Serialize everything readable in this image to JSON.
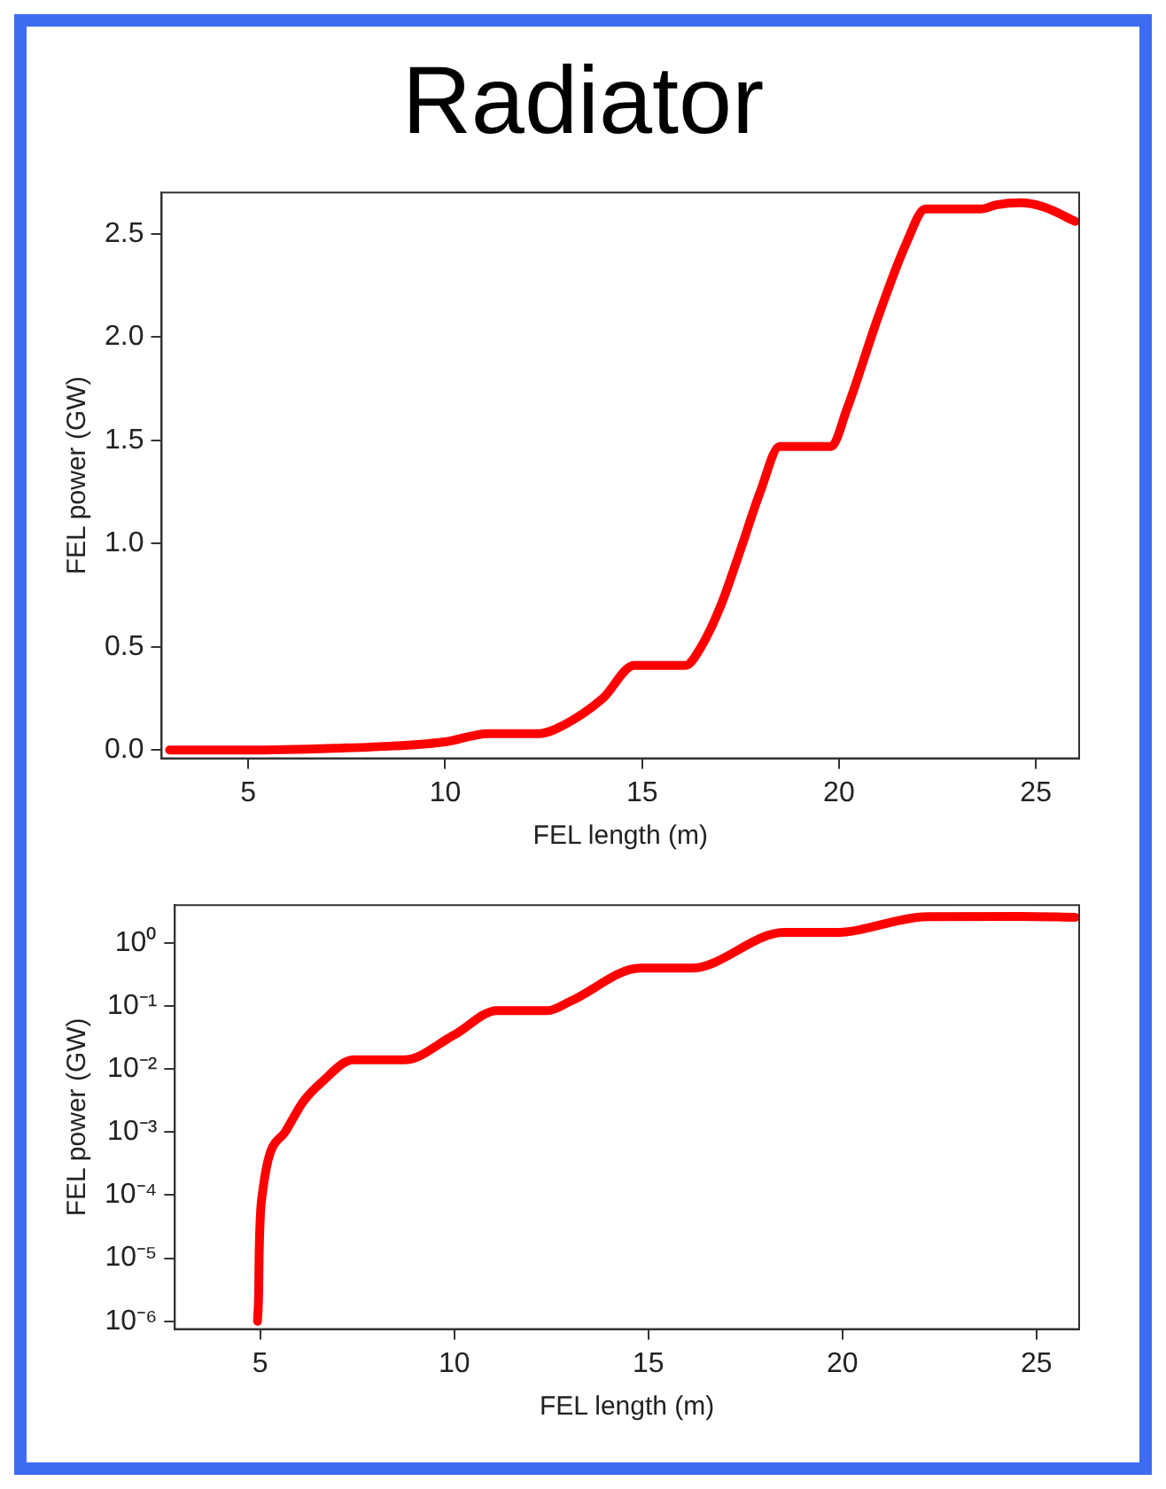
{
  "chart_data": [
    {
      "type": "line",
      "title": "Radiator",
      "xlabel": "FEL length (m)",
      "ylabel": "FEL power (GW)",
      "xlim": [
        2.8,
        26.1
      ],
      "ylim": [
        -0.04,
        2.7
      ],
      "xticks": [
        5,
        10,
        15,
        20,
        25
      ],
      "yticks": [
        {
          "value": 0,
          "label": "0.0"
        },
        {
          "value": 0.5,
          "label": "0.5"
        },
        {
          "value": 1,
          "label": "1.0"
        },
        {
          "value": 1.5,
          "label": "1.5"
        },
        {
          "value": 2,
          "label": "2.0"
        },
        {
          "value": 2.5,
          "label": "2.5"
        }
      ],
      "grid": false,
      "legend": false,
      "marker": "none",
      "line_style": "solid",
      "series": [
        {
          "color": "#ff0000",
          "x": [
            3,
            5,
            7.4,
            8.7,
            10,
            11.1,
            12.4,
            13,
            14,
            14.8,
            16.1,
            16.5,
            17,
            17.5,
            18,
            18.5,
            19.8,
            20.2,
            21,
            21.7,
            22.2,
            23.6,
            24,
            24.6,
            25.2,
            26
          ],
          "values": [
            0,
            0,
            0.01,
            0.02,
            0.04,
            0.08,
            0.08,
            0.12,
            0.25,
            0.41,
            0.41,
            0.5,
            0.7,
            0.97,
            1.25,
            1.47,
            1.47,
            1.65,
            2.1,
            2.45,
            2.62,
            2.62,
            2.64,
            2.65,
            2.63,
            2.56
          ]
        }
      ]
    },
    {
      "type": "line",
      "xlabel": "FEL length (m)",
      "ylabel": "FEL power (GW)",
      "log": "y",
      "xlim": [
        2.8,
        26.1
      ],
      "ylim": [
        7.5e-07,
        4
      ],
      "xticks": [
        5,
        10,
        15,
        20,
        25
      ],
      "yticks": [
        {
          "value": 1e-06,
          "label": "10⁻⁶"
        },
        {
          "value": 1e-05,
          "label": "10⁻⁵"
        },
        {
          "value": 0.0001,
          "label": "10⁻⁴"
        },
        {
          "value": 0.001,
          "label": "10⁻³"
        },
        {
          "value": 0.01,
          "label": "10⁻²"
        },
        {
          "value": 0.1,
          "label": "10⁻¹"
        },
        {
          "value": 1,
          "label": "10⁰"
        }
      ],
      "grid": false,
      "legend": false,
      "marker": "none",
      "line_style": "solid",
      "series": [
        {
          "color": "#ff0000",
          "x": [
            4.93,
            4.96,
            4.97,
            5.05,
            5.64,
            6.1,
            6.56,
            7.4,
            8.7,
            10,
            11.1,
            12.4,
            13,
            14.8,
            16.1,
            18.5,
            19.8,
            22.2,
            24.6,
            26
          ],
          "values": [
            1e-06,
            3e-06,
            1e-05,
            0.0001,
            0.001,
            0.003,
            0.006,
            0.014,
            0.014,
            0.035,
            0.085,
            0.085,
            0.12,
            0.4,
            0.4,
            1.47,
            1.47,
            2.62,
            2.65,
            2.56
          ]
        }
      ]
    }
  ]
}
